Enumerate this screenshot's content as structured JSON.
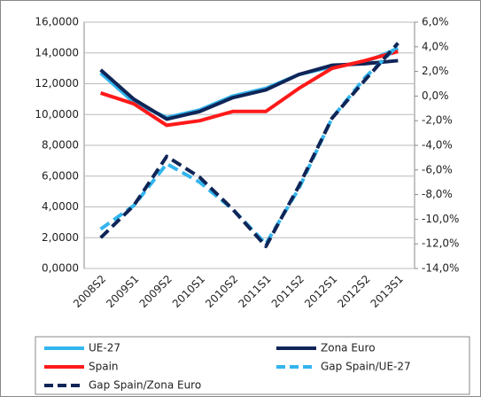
{
  "chart_data": {
    "type": "line",
    "categories": [
      "2008S2",
      "2009S1",
      "2009S2",
      "2010S1",
      "2010S2",
      "2011S1",
      "2011S2",
      "2012S1",
      "2012S2",
      "2013S1"
    ],
    "ylim": [
      0,
      16
    ],
    "yticks": [
      {
        "value": 0,
        "label": "0,0000"
      },
      {
        "value": 2,
        "label": "2,0000"
      },
      {
        "value": 4,
        "label": "4,0000"
      },
      {
        "value": 6,
        "label": "6,0000"
      },
      {
        "value": 8,
        "label": "8,0000"
      },
      {
        "value": 10,
        "label": "10,0000"
      },
      {
        "value": 12,
        "label": "12,0000"
      },
      {
        "value": 14,
        "label": "14,0000"
      },
      {
        "value": 16,
        "label": "16,0000"
      }
    ],
    "y2lim": [
      -14,
      6
    ],
    "y2ticks": [
      {
        "value": -14,
        "label": "-14,0%"
      },
      {
        "value": -12,
        "label": "-12,0%"
      },
      {
        "value": -10,
        "label": "-10,0%"
      },
      {
        "value": -8,
        "label": "-8,0%"
      },
      {
        "value": -6,
        "label": "-6,0%"
      },
      {
        "value": -4,
        "label": "-4,0%"
      },
      {
        "value": -2,
        "label": "-2,0%"
      },
      {
        "value": 0,
        "label": "0,0%"
      },
      {
        "value": 2,
        "label": "2,0%"
      },
      {
        "value": 4,
        "label": "4,0%"
      },
      {
        "value": 6,
        "label": "6,0%"
      }
    ],
    "grid": true,
    "series": [
      {
        "name": "UE-27",
        "color": "#33b5ee",
        "dashed": false,
        "values": [
          12.7,
          10.8,
          9.8,
          10.3,
          11.2,
          11.7,
          12.6,
          13.1,
          13.4,
          14.3
        ]
      },
      {
        "name": "Zona Euro",
        "color": "#0f2557",
        "dashed": false,
        "values": [
          12.9,
          11.0,
          9.7,
          10.2,
          11.1,
          11.6,
          12.6,
          13.2,
          13.3,
          13.5
        ]
      },
      {
        "name": "Spain",
        "color": "#ff1a1a",
        "dashed": false,
        "values": [
          11.4,
          10.7,
          9.3,
          9.6,
          10.2,
          10.2,
          11.7,
          13.0,
          13.5,
          14.1
        ]
      },
      {
        "name": "Gap Spain/UE-27",
        "color": "#33b5ee",
        "dashed": true,
        "axis": "y2",
        "values": [
          -10.8,
          -8.9,
          -5.5,
          -7.0,
          -9.2,
          -12.0,
          -7.5,
          -1.8,
          1.5,
          4.1
        ]
      },
      {
        "name": "Gap Spain/Zona Euro",
        "color": "#0f2557",
        "dashed": true,
        "axis": "y2",
        "values": [
          -11.5,
          -8.9,
          -4.9,
          -6.6,
          -9.2,
          -12.2,
          -7.3,
          -1.8,
          1.3,
          4.3
        ]
      }
    ]
  }
}
